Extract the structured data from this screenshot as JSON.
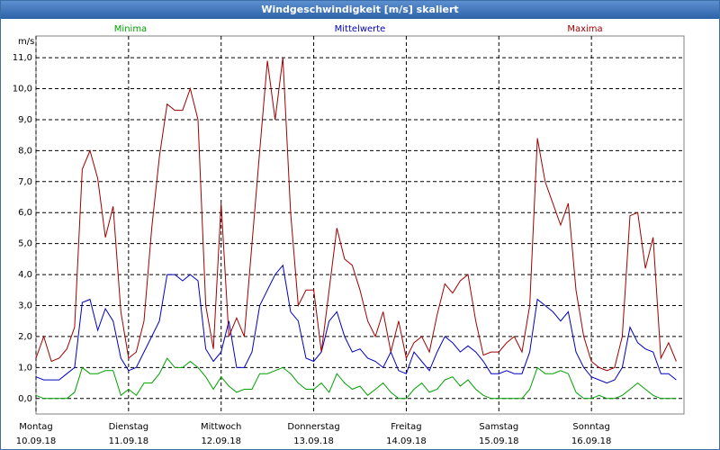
{
  "window_title": "Windgeschwindigkeit [m/s] skaliert",
  "chart_data": {
    "type": "line",
    "y_unit": "m/s",
    "xlim": [
      0,
      7
    ],
    "xticks": [
      {
        "value": 0,
        "label": "Montag",
        "date": "10.09.18"
      },
      {
        "value": 1,
        "label": "Dienstag",
        "date": "11.09.18"
      },
      {
        "value": 2,
        "label": "Mittwoch",
        "date": "12.09.18"
      },
      {
        "value": 3,
        "label": "Donnerstag",
        "date": "13.09.18"
      },
      {
        "value": 4,
        "label": "Freitag",
        "date": "14.09.18"
      },
      {
        "value": 5,
        "label": "Samstag",
        "date": "15.09.18"
      },
      {
        "value": 6,
        "label": "Sonntag",
        "date": "16.09.18"
      }
    ],
    "ylim": [
      -0.5,
      11.7
    ],
    "yticks": [
      {
        "value": 0,
        "label": "0,0"
      },
      {
        "value": 1,
        "label": "1,0"
      },
      {
        "value": 2,
        "label": "2,0"
      },
      {
        "value": 3,
        "label": "3,0"
      },
      {
        "value": 4,
        "label": "4,0"
      },
      {
        "value": 5,
        "label": "5,0"
      },
      {
        "value": 6,
        "label": "6,0"
      },
      {
        "value": 7,
        "label": "7,0"
      },
      {
        "value": 8,
        "label": "8,0"
      },
      {
        "value": 9,
        "label": "9,0"
      },
      {
        "value": 10,
        "label": "10,0"
      },
      {
        "value": 11,
        "label": "11,0"
      }
    ],
    "grid": true,
    "series": [
      {
        "name": "Minima",
        "color": "#00a000",
        "values": [
          0.1,
          0,
          0,
          0,
          0,
          0.2,
          1.0,
          0.8,
          0.8,
          0.9,
          0.9,
          0.1,
          0.3,
          0.1,
          0.5,
          0.5,
          0.8,
          1.3,
          1.0,
          1.0,
          1.2,
          1.0,
          0.7,
          0.3,
          0.7,
          0.4,
          0.2,
          0.3,
          0.3,
          0.8,
          0.8,
          0.9,
          1.0,
          0.8,
          0.5,
          0.3,
          0.3,
          0.5,
          0.2,
          0.8,
          0.5,
          0.3,
          0.4,
          0.1,
          0.3,
          0.5,
          0.2,
          0,
          0,
          0.3,
          0.5,
          0.2,
          0.3,
          0.6,
          0.7,
          0.4,
          0.6,
          0.3,
          0.1,
          0,
          0,
          0,
          0,
          0,
          0.3,
          1.0,
          0.8,
          0.8,
          0.9,
          0.8,
          0.2,
          0,
          0,
          0.1,
          0,
          0,
          0.1,
          0.3,
          0.5,
          0.3,
          0.1,
          0,
          0,
          0
        ]
      },
      {
        "name": "Mittelwerte",
        "color": "#0000c0",
        "values": [
          0.7,
          0.6,
          0.6,
          0.6,
          0.8,
          1.0,
          3.1,
          3.2,
          2.2,
          2.9,
          2.5,
          1.3,
          0.9,
          1.0,
          1.5,
          2.0,
          2.5,
          4.0,
          4.0,
          3.8,
          4.0,
          3.8,
          1.6,
          1.2,
          1.5,
          2.5,
          1.0,
          1.0,
          1.5,
          3.0,
          3.5,
          4.0,
          4.3,
          2.8,
          2.5,
          1.3,
          1.2,
          1.5,
          2.5,
          2.8,
          2.0,
          1.5,
          1.6,
          1.3,
          1.2,
          1.0,
          1.5,
          0.9,
          0.8,
          1.5,
          1.2,
          0.9,
          1.5,
          2.0,
          1.8,
          1.5,
          1.7,
          1.5,
          1.2,
          0.8,
          0.8,
          0.9,
          0.8,
          0.8,
          1.5,
          3.2,
          3.0,
          2.8,
          2.5,
          2.8,
          1.5,
          1.0,
          0.7,
          0.6,
          0.5,
          0.6,
          1.0,
          2.3,
          1.8,
          1.6,
          1.5,
          0.8,
          0.8,
          0.6
        ]
      },
      {
        "name": "Maxima",
        "color": "#a00000",
        "values": [
          1.3,
          2.0,
          1.2,
          1.3,
          1.6,
          2.3,
          7.4,
          8.0,
          7.1,
          5.2,
          6.2,
          2.8,
          1.3,
          1.5,
          2.5,
          5.5,
          7.8,
          9.5,
          9.3,
          9.3,
          10.0,
          9.0,
          3.0,
          1.6,
          6.3,
          2.0,
          2.6,
          2.0,
          5.0,
          8.0,
          10.9,
          9.0,
          11.0,
          6.0,
          3.0,
          3.5,
          3.5,
          1.5,
          3.5,
          5.5,
          4.5,
          4.3,
          3.5,
          2.5,
          2.0,
          2.8,
          1.5,
          2.5,
          1.3,
          1.8,
          2.0,
          1.5,
          2.7,
          3.7,
          3.4,
          3.8,
          4.0,
          2.5,
          1.4,
          1.5,
          1.5,
          1.8,
          2.0,
          1.5,
          3.0,
          8.4,
          7.0,
          6.3,
          5.6,
          6.3,
          3.5,
          2.0,
          1.2,
          1.0,
          0.9,
          1.0,
          2.0,
          5.9,
          6.0,
          4.2,
          5.2,
          1.3,
          1.8,
          1.2
        ]
      }
    ]
  }
}
